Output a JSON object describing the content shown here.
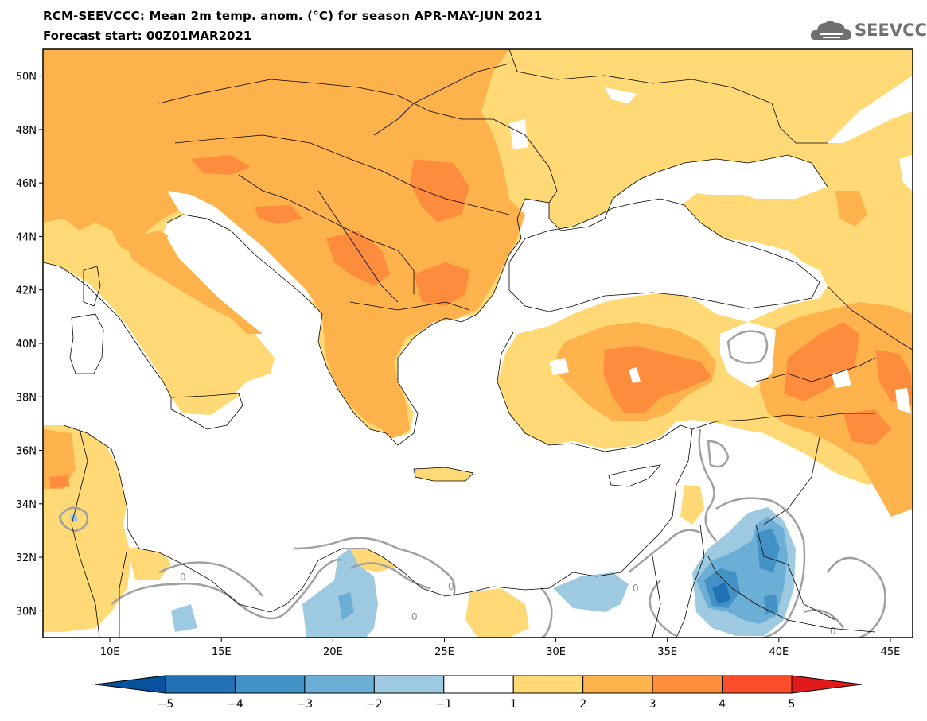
{
  "header": {
    "title": "RCM-SEEVCCC: Mean 2m temp. anom. (°C) for season APR-MAY-JUN 2021",
    "subtitle": "Forecast start: 00Z01MAR2021"
  },
  "logo": {
    "text": "SEEVCCC",
    "icon": "cloud-icon"
  },
  "map": {
    "projection": "lat-lon",
    "lon_range": [
      7,
      46
    ],
    "lat_range": [
      29,
      51
    ],
    "lon_ticks": [
      10,
      15,
      20,
      25,
      30,
      35,
      40,
      45
    ],
    "lon_tick_labels": [
      "10E",
      "15E",
      "20E",
      "25E",
      "30E",
      "35E",
      "40E",
      "45E"
    ],
    "lat_ticks": [
      30,
      32,
      34,
      36,
      38,
      40,
      42,
      44,
      46,
      48,
      50
    ],
    "lat_tick_labels": [
      "30N",
      "32N",
      "34N",
      "36N",
      "38N",
      "40N",
      "42N",
      "44N",
      "46N",
      "48N",
      "50N"
    ],
    "contour_label": "0",
    "colors": {
      "sea": "#ffffff",
      "p1_2": "#fed976",
      "p2_3": "#feb24c",
      "p3_4": "#fd8d3c",
      "p4_5": "#fc4e2a",
      "n1_2": "#9ecae1",
      "n2_3": "#6baed6",
      "n3_4": "#4292c6",
      "n4_5": "#2171b5",
      "contour": "#a0a0a0",
      "border": "#000000"
    }
  },
  "colorbar": {
    "labels": [
      "−5",
      "−4",
      "−3",
      "−2",
      "−1",
      "1",
      "2",
      "3",
      "4",
      "5"
    ],
    "colors": [
      "#08519c",
      "#2171b5",
      "#4292c6",
      "#6baed6",
      "#9ecae1",
      "#ffffff",
      "#fed976",
      "#feb24c",
      "#fd8d3c",
      "#fc4e2a",
      "#e31a1c"
    ]
  }
}
